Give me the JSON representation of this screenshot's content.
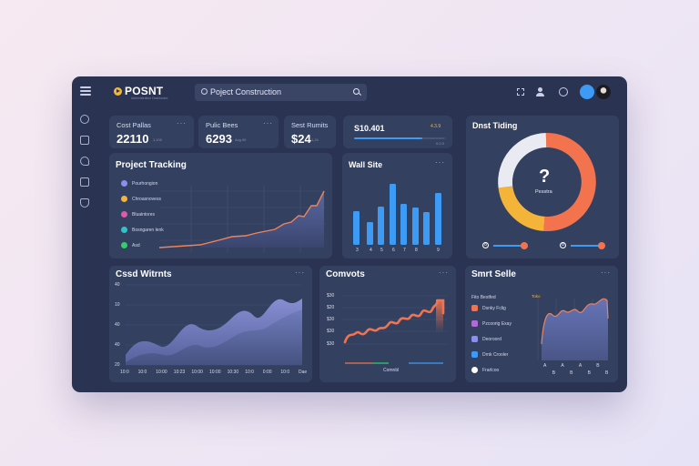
{
  "app": {
    "brand": "POSNT",
    "brand_sub": "Administration Dashboard",
    "search_text": "Poject Construction"
  },
  "stats": [
    {
      "label": "Cost Pallas",
      "value": "22110",
      "sub": "1,100"
    },
    {
      "label": "Pulic Bees",
      "value": "6293",
      "sub": "Avg 00"
    },
    {
      "label": "Sest Rumits",
      "value": "$24",
      "sub": "1,24"
    }
  ],
  "progress_stat": {
    "value": "S10.401",
    "badge": "4.3.9",
    "sub": "0.0.3",
    "fill": 0.75
  },
  "project_tracking": {
    "title": "Project Tracking",
    "legend": [
      {
        "label": "Pourhongion",
        "color": "#8b8ff0"
      },
      {
        "label": "Chroasnovess",
        "color": "#f4b43a"
      },
      {
        "label": "Bluaintores",
        "color": "#e05aa8"
      },
      {
        "label": "Bosngaren lenk",
        "color": "#2ec4c9"
      },
      {
        "label": "Asd",
        "color": "#2fd06a"
      }
    ]
  },
  "bar_card": {
    "title": "Wall Site",
    "xlabels": [
      "3",
      "4",
      "5",
      "6",
      "7",
      "8",
      "9"
    ]
  },
  "donut_card": {
    "title": "Dnst Tiding",
    "center_symbol": "?",
    "center_label": "Pesstra",
    "segments": [
      {
        "label": "Orange",
        "color": "#f4734f",
        "value": 0.58
      },
      {
        "label": "Yellow",
        "color": "#f4b43a",
        "value": 0.17
      },
      {
        "label": "White",
        "color": "#eaeaf2",
        "value": 0.25
      }
    ],
    "slider_values": [
      "8",
      "8"
    ]
  },
  "area_card": {
    "title": "Cssd Witrnts",
    "ylabels": [
      "40",
      "10",
      "40",
      "40",
      "20"
    ],
    "xlabels": [
      "10:0",
      "10:0",
      "10:00",
      "10:23",
      "10:00",
      "10:00",
      "10:30",
      "10:0",
      "0:00",
      "10:0",
      "Dae"
    ]
  },
  "line_card": {
    "title": "Comvots",
    "ylabels": [
      "$30",
      "$20",
      "$30",
      "$30",
      "$30"
    ],
    "xlabel": "Comnbl"
  },
  "sales_card": {
    "title": "Smrt Selle",
    "legend_header": "Fito Bestfed",
    "legend": [
      {
        "label": "Dsnky Fclig",
        "color": "#f4734f"
      },
      {
        "label": "Pzcoorig Exay",
        "color": "#b36ad9"
      },
      {
        "label": "Deoroord",
        "color": "#8b8ff0"
      },
      {
        "label": "Drnk Crooler",
        "color": "#3d9bf5"
      },
      {
        "label": "Frarlcoo",
        "color": "#ffffff"
      }
    ],
    "tag": "Toko",
    "xlabels": [
      "A",
      "B",
      "A",
      "B",
      "A",
      "B",
      "B",
      "B"
    ]
  }
}
